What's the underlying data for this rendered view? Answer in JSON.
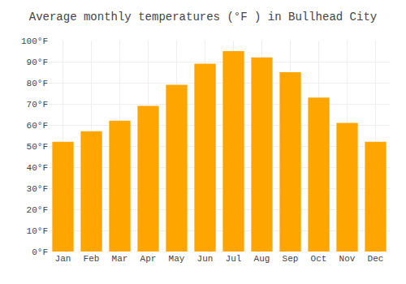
{
  "chart_data": {
    "type": "bar",
    "title": "Average monthly temperatures (°F ) in Bullhead City",
    "categories": [
      "Jan",
      "Feb",
      "Mar",
      "Apr",
      "May",
      "Jun",
      "Jul",
      "Aug",
      "Sep",
      "Oct",
      "Nov",
      "Dec"
    ],
    "values": [
      52,
      57,
      62,
      69,
      79,
      89,
      95,
      92,
      85,
      73,
      61,
      52
    ],
    "color": "#FFA500",
    "ylim": [
      0,
      100
    ],
    "yticks": [
      {
        "value": 0,
        "label": "0°F"
      },
      {
        "value": 10,
        "label": "10°F"
      },
      {
        "value": 20,
        "label": "20°F"
      },
      {
        "value": 30,
        "label": "30°F"
      },
      {
        "value": 40,
        "label": "40°F"
      },
      {
        "value": 50,
        "label": "50°F"
      },
      {
        "value": 60,
        "label": "60°F"
      },
      {
        "value": 70,
        "label": "70°F"
      },
      {
        "value": 80,
        "label": "80°F"
      },
      {
        "value": 90,
        "label": "90°F"
      },
      {
        "value": 100,
        "label": "100°F"
      }
    ],
    "grid": true
  }
}
